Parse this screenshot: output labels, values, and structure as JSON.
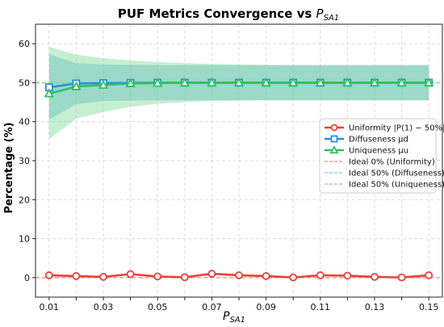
{
  "chart_data": {
    "type": "line",
    "title": "PUF Metrics Convergence vs ",
    "title_var": "P",
    "title_sub": "SA1",
    "xlabel": "P",
    "xlabel_sub": "SA1",
    "ylabel": "Percentage (%)",
    "xlim": [
      0.005,
      0.155
    ],
    "ylim": [
      -5,
      65
    ],
    "xticks": [
      "0.01",
      "0.03",
      "0.05",
      "0.07",
      "0.09",
      "0.11",
      "0.13",
      "0.15"
    ],
    "yticks": [
      "0",
      "10",
      "20",
      "30",
      "40",
      "50",
      "60"
    ],
    "grid": true,
    "legend_position": "right",
    "x": [
      0.01,
      0.02,
      0.03,
      0.04,
      0.05,
      0.06,
      0.07,
      0.08,
      0.09,
      0.1,
      0.11,
      0.12,
      0.13,
      0.14,
      0.15
    ],
    "series": [
      {
        "name": "Uniformity |P(1) − 50%|",
        "color": "#e8423a",
        "marker": "circle",
        "values": [
          0.6,
          0.4,
          0.2,
          0.9,
          0.3,
          0.1,
          1.0,
          0.6,
          0.4,
          0.05,
          0.6,
          0.5,
          0.2,
          0.05,
          0.6
        ]
      },
      {
        "name": "Diffuseness μd",
        "color": "#2b8fd6",
        "marker": "square",
        "values": [
          48.8,
          49.8,
          49.9,
          49.95,
          50,
          50,
          50,
          50,
          50,
          50,
          50,
          50,
          50,
          50,
          50
        ],
        "band_lower": [
          40.5,
          44.5,
          45.3,
          45.4,
          45.5,
          45.5,
          45.5,
          45.5,
          45.5,
          45.5,
          45.5,
          45.5,
          45.5,
          45.5,
          45.5
        ],
        "band_upper": [
          57.3,
          55.0,
          54.7,
          54.6,
          54.5,
          54.5,
          54.5,
          54.5,
          54.5,
          54.5,
          54.5,
          54.5,
          54.5,
          54.5,
          54.5
        ],
        "band_color": "#5aa9d8"
      },
      {
        "name": "Uniqueness μu",
        "color": "#2ec25c",
        "marker": "triangle",
        "values": [
          47.2,
          49.0,
          49.4,
          49.8,
          49.9,
          50,
          50,
          50,
          50,
          50,
          50,
          50,
          50,
          50,
          50
        ],
        "band_lower": [
          35.5,
          40.8,
          42.5,
          43.8,
          44.6,
          45.0,
          45.3,
          45.4,
          45.5,
          45.5,
          45.5,
          45.5,
          45.5,
          45.5,
          45.5
        ],
        "band_upper": [
          59.2,
          57.2,
          56.3,
          55.7,
          55.3,
          55.0,
          54.8,
          54.7,
          54.6,
          54.5,
          54.5,
          54.5,
          54.5,
          54.5,
          54.5
        ],
        "band_color": "#7fdc9a"
      }
    ],
    "reference_lines": [
      {
        "name": "Ideal 0% (Uniformity)",
        "y": 0,
        "color": "#f08a8a"
      },
      {
        "name": "Ideal 50% (Diffuseness)",
        "y": 50,
        "color": "#7ec3ec"
      },
      {
        "name": "Ideal 50% (Uniqueness)",
        "y": 50,
        "color": "#7ad98f"
      }
    ]
  }
}
